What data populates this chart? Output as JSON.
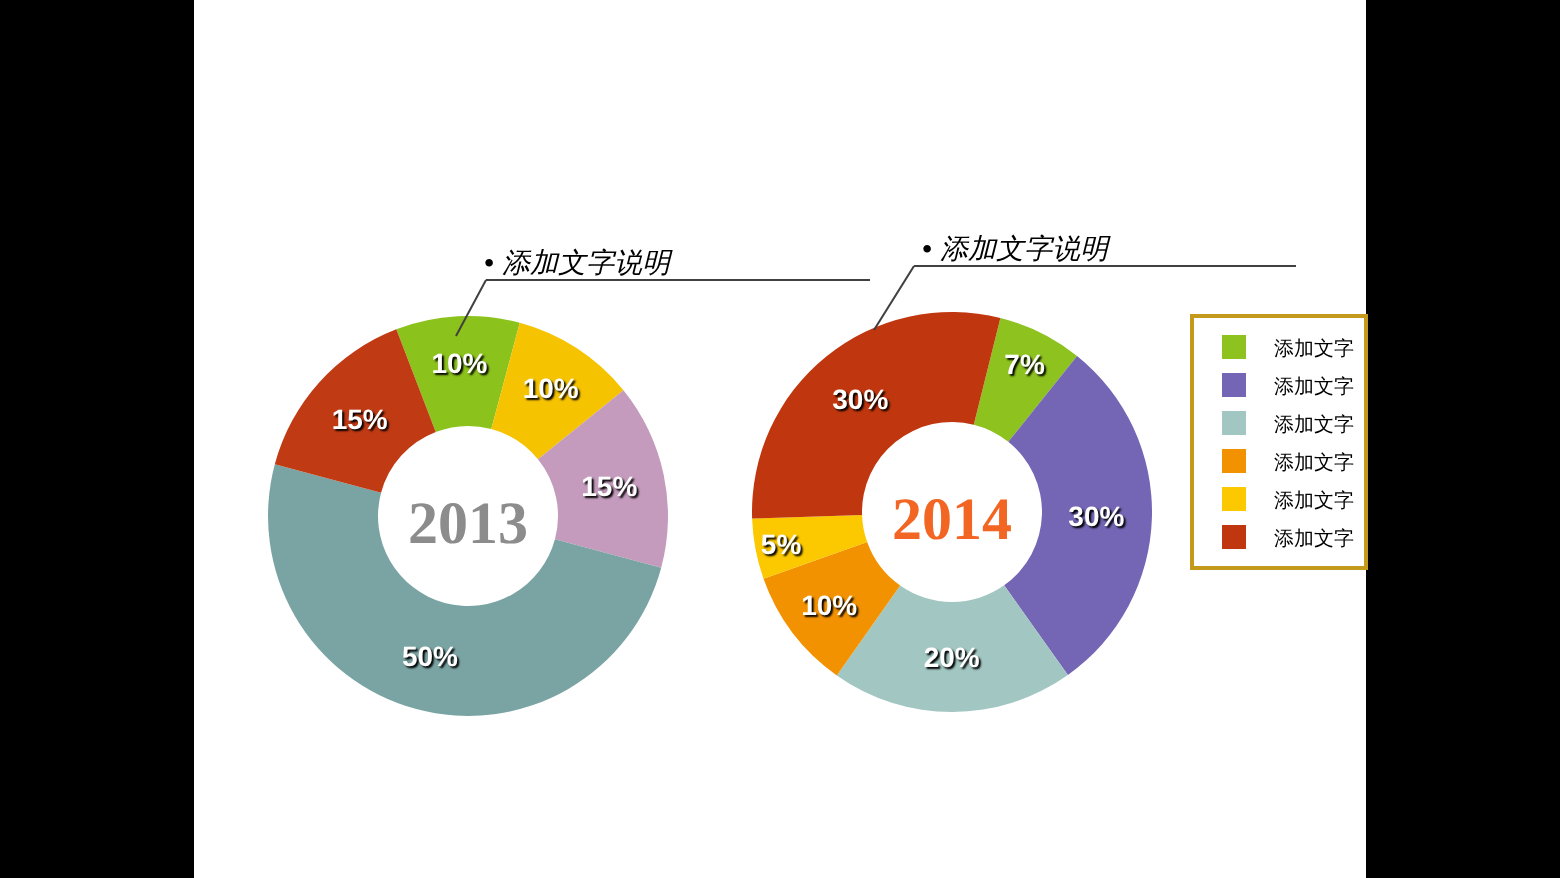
{
  "chart_data": [
    {
      "type": "donut",
      "title": "2013",
      "categories": [
        null,
        null,
        null,
        null,
        null
      ],
      "values": [
        10,
        10,
        15,
        50,
        15
      ],
      "colors": [
        "#8cc21c",
        "#f6c300",
        "#c49bbd",
        "#7aa4a3",
        "#c03a14"
      ],
      "value_labels": [
        "10%",
        "10%",
        "15%",
        "50%",
        "15%"
      ],
      "annotations": [
        "• 添加文字说明"
      ],
      "legend": false
    },
    {
      "type": "donut",
      "title": "2014",
      "categories": [
        "添加文字",
        "添加文字",
        "添加文字",
        "添加文字",
        "添加文字",
        "添加文字"
      ],
      "values": [
        7,
        30,
        20,
        10,
        5,
        30
      ],
      "colors": [
        "#8dc21f",
        "#7466b5",
        "#a2c6c2",
        "#f39200",
        "#fcc800",
        "#c0360e"
      ],
      "value_labels": [
        "7%",
        "30%",
        "20%",
        "10%",
        "5%",
        "30%"
      ],
      "annotations": [
        "• 添加文字说明"
      ],
      "legend": "right"
    }
  ]
}
